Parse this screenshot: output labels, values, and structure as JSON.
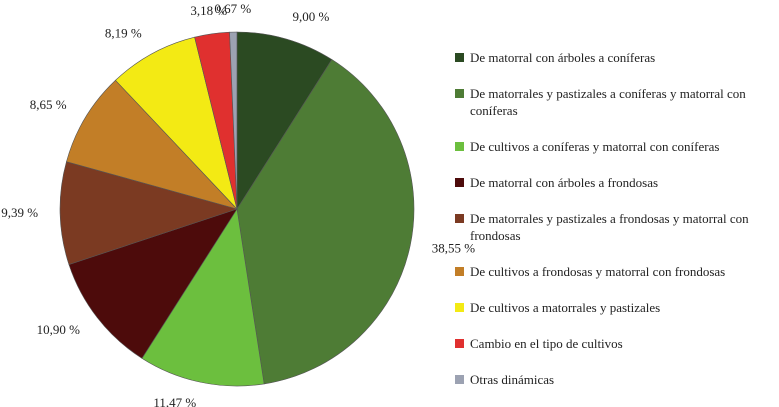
{
  "chart_data": {
    "type": "pie",
    "categories": [
      "De matorral con árboles a coníferas",
      "De matorrales y pastizales a coníferas y matorral con coníferas",
      "De cultivos a coníferas y matorral con coníferas",
      "De matorral con árboles a frondosas",
      "De matorrales y pastizales a frondosas y matorral con frondosas",
      "De cultivos a frondosas y matorral con frondosas",
      "De cultivos a matorrales y pastizales",
      "Cambio en el tipo de cultivos",
      "Otras dinámicas"
    ],
    "values": [
      9.0,
      38.55,
      11.47,
      10.9,
      9.39,
      8.65,
      8.19,
      3.18,
      0.67
    ],
    "value_labels": [
      "9,00 %",
      "38,55 %",
      "11,47 %",
      "10,90 %",
      "9,39 %",
      "8,65 %",
      "8,19 %",
      "3,18 %",
      "0,67 %"
    ],
    "colors": [
      "#2b4a22",
      "#4e7c35",
      "#6cbf3e",
      "#4d0b0b",
      "#7b3a22",
      "#c27e27",
      "#f3ea14",
      "#e0302f",
      "#9ca2b2"
    ],
    "legend": "right"
  }
}
